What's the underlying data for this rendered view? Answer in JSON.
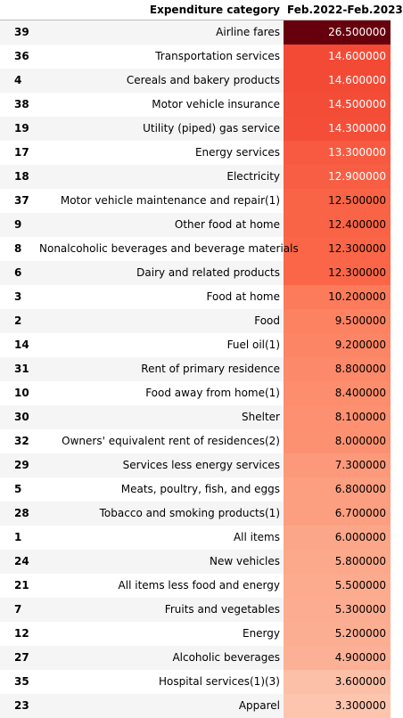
{
  "chart_data": {
    "type": "table",
    "columns": [
      "",
      "Expenditure category",
      "Feb.2022-Feb.2023"
    ],
    "rows": [
      {
        "index": "39",
        "category": "Airline fares",
        "value": "26.500000",
        "v": 26.5
      },
      {
        "index": "36",
        "category": "Transportation services",
        "value": "14.600000",
        "v": 14.6
      },
      {
        "index": "4",
        "category": "Cereals and bakery products",
        "value": "14.600000",
        "v": 14.6
      },
      {
        "index": "38",
        "category": "Motor vehicle insurance",
        "value": "14.500000",
        "v": 14.5
      },
      {
        "index": "19",
        "category": "Utility (piped) gas service",
        "value": "14.300000",
        "v": 14.3
      },
      {
        "index": "17",
        "category": "Energy services",
        "value": "13.300000",
        "v": 13.3
      },
      {
        "index": "18",
        "category": "Electricity",
        "value": "12.900000",
        "v": 12.9
      },
      {
        "index": "37",
        "category": "Motor vehicle maintenance and repair(1)",
        "value": "12.500000",
        "v": 12.5
      },
      {
        "index": "9",
        "category": "Other food at home",
        "value": "12.400000",
        "v": 12.4
      },
      {
        "index": "8",
        "category": "Nonalcoholic beverages and beverage materials",
        "value": "12.300000",
        "v": 12.3
      },
      {
        "index": "6",
        "category": "Dairy and related products",
        "value": "12.300000",
        "v": 12.3
      },
      {
        "index": "3",
        "category": "Food at home",
        "value": "10.200000",
        "v": 10.2
      },
      {
        "index": "2",
        "category": "Food",
        "value": "9.500000",
        "v": 9.5
      },
      {
        "index": "14",
        "category": "Fuel oil(1)",
        "value": "9.200000",
        "v": 9.2
      },
      {
        "index": "31",
        "category": "Rent of primary residence",
        "value": "8.800000",
        "v": 8.8
      },
      {
        "index": "10",
        "category": "Food away from home(1)",
        "value": "8.400000",
        "v": 8.4
      },
      {
        "index": "30",
        "category": "Shelter",
        "value": "8.100000",
        "v": 8.1
      },
      {
        "index": "32",
        "category": "Owners' equivalent rent of residences(2)",
        "value": "8.000000",
        "v": 8.0
      },
      {
        "index": "29",
        "category": "Services less energy services",
        "value": "7.300000",
        "v": 7.3
      },
      {
        "index": "5",
        "category": "Meats, poultry, fish, and eggs",
        "value": "6.800000",
        "v": 6.8
      },
      {
        "index": "28",
        "category": "Tobacco and smoking products(1)",
        "value": "6.700000",
        "v": 6.7
      },
      {
        "index": "1",
        "category": "All items",
        "value": "6.000000",
        "v": 6.0
      },
      {
        "index": "24",
        "category": "New vehicles",
        "value": "5.800000",
        "v": 5.8
      },
      {
        "index": "21",
        "category": "All items less food and energy",
        "value": "5.500000",
        "v": 5.5
      },
      {
        "index": "7",
        "category": "Fruits and vegetables",
        "value": "5.300000",
        "v": 5.3
      },
      {
        "index": "12",
        "category": "Energy",
        "value": "5.200000",
        "v": 5.2
      },
      {
        "index": "27",
        "category": "Alcoholic beverages",
        "value": "4.900000",
        "v": 4.9
      },
      {
        "index": "35",
        "category": "Hospital services(1)(3)",
        "value": "3.600000",
        "v": 3.6
      },
      {
        "index": "23",
        "category": "Apparel",
        "value": "3.300000",
        "v": 3.3
      }
    ],
    "color_scale": {
      "low": "#fee0d2",
      "mid": "#fb6a4a",
      "high": "#67000d",
      "min": 0,
      "max": 26.5
    }
  }
}
